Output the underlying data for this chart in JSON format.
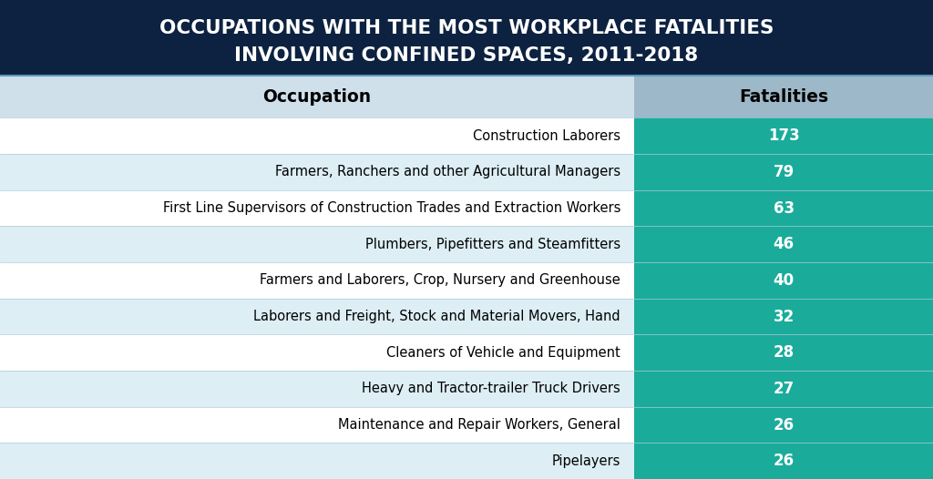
{
  "title_line1": "OCCUPATIONS WITH THE MOST WORKPLACE FATALITIES",
  "title_line2": "INVOLVING CONFINED SPACES, 2011-2018",
  "title_bg_color": "#0d2240",
  "title_text_color": "#ffffff",
  "header_occupation": "Occupation",
  "header_fatalities": "Fatalities",
  "header_occ_bg": "#cfe0eb",
  "header_fat_bg": "#9db8c8",
  "header_text_color": "#000000",
  "fatality_col_bg": "#1aab9b",
  "fatality_text_color": "#ffffff",
  "row_colors_odd": "#ffffff",
  "row_colors_even": "#ddeef5",
  "occupation_text_color": "#000000",
  "col_split": 0.68,
  "occupations": [
    "Construction Laborers",
    "Farmers, Ranchers and other Agricultural Managers",
    "First Line Supervisors of Construction Trades and Extraction Workers",
    "Plumbers, Pipefitters and Steamfitters",
    "Farmers and Laborers, Crop, Nursery and Greenhouse",
    "Laborers and Freight, Stock and Material Movers, Hand",
    "Cleaners of Vehicle and Equipment",
    "Heavy and Tractor-trailer Truck Drivers",
    "Maintenance and Repair Workers, General",
    "Pipelayers"
  ],
  "fatalities": [
    173,
    79,
    63,
    46,
    40,
    32,
    28,
    27,
    26,
    26
  ]
}
